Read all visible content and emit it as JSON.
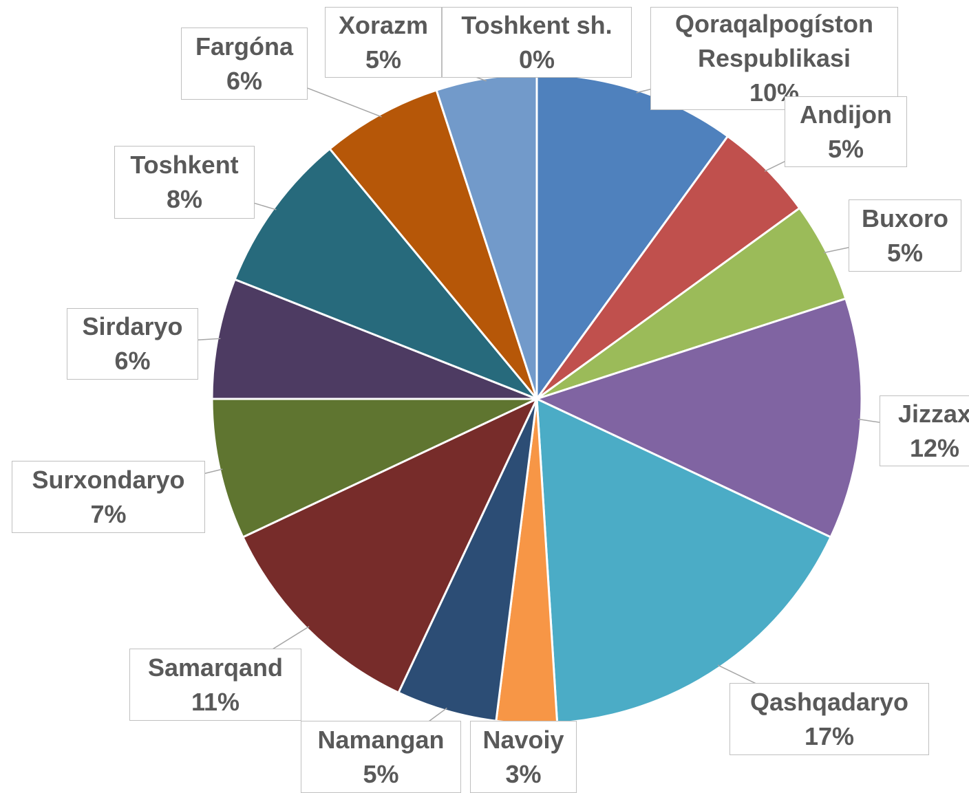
{
  "chart_data": {
    "type": "pie",
    "categories": [
      "Qoraqalpogíston Respublikasi",
      "Andijon",
      "Buxoro",
      "Jizzax",
      "Qashqadaryo",
      "Navoiy",
      "Namangan",
      "Samarqand",
      "Surxondaryo",
      "Sirdaryo",
      "Toshkent",
      "Fargóna",
      "Xorazm",
      "Toshkent sh."
    ],
    "values": [
      10,
      5,
      5,
      12,
      17,
      3,
      5,
      11,
      7,
      6,
      8,
      6,
      5,
      0
    ],
    "value_labels": [
      "10%",
      "5%",
      "5%",
      "12%",
      "17%",
      "3%",
      "5%",
      "11%",
      "7%",
      "6%",
      "8%",
      "6%",
      "5%",
      "0%"
    ],
    "colors": [
      "#4f81bd",
      "#c0504d",
      "#9bbb59",
      "#8064a2",
      "#4bacc6",
      "#f79646",
      "#2c4d75",
      "#772c2a",
      "#5f7530",
      "#4d3b62",
      "#276a7c",
      "#b65708",
      "#729aca",
      "#4f81bd"
    ]
  }
}
